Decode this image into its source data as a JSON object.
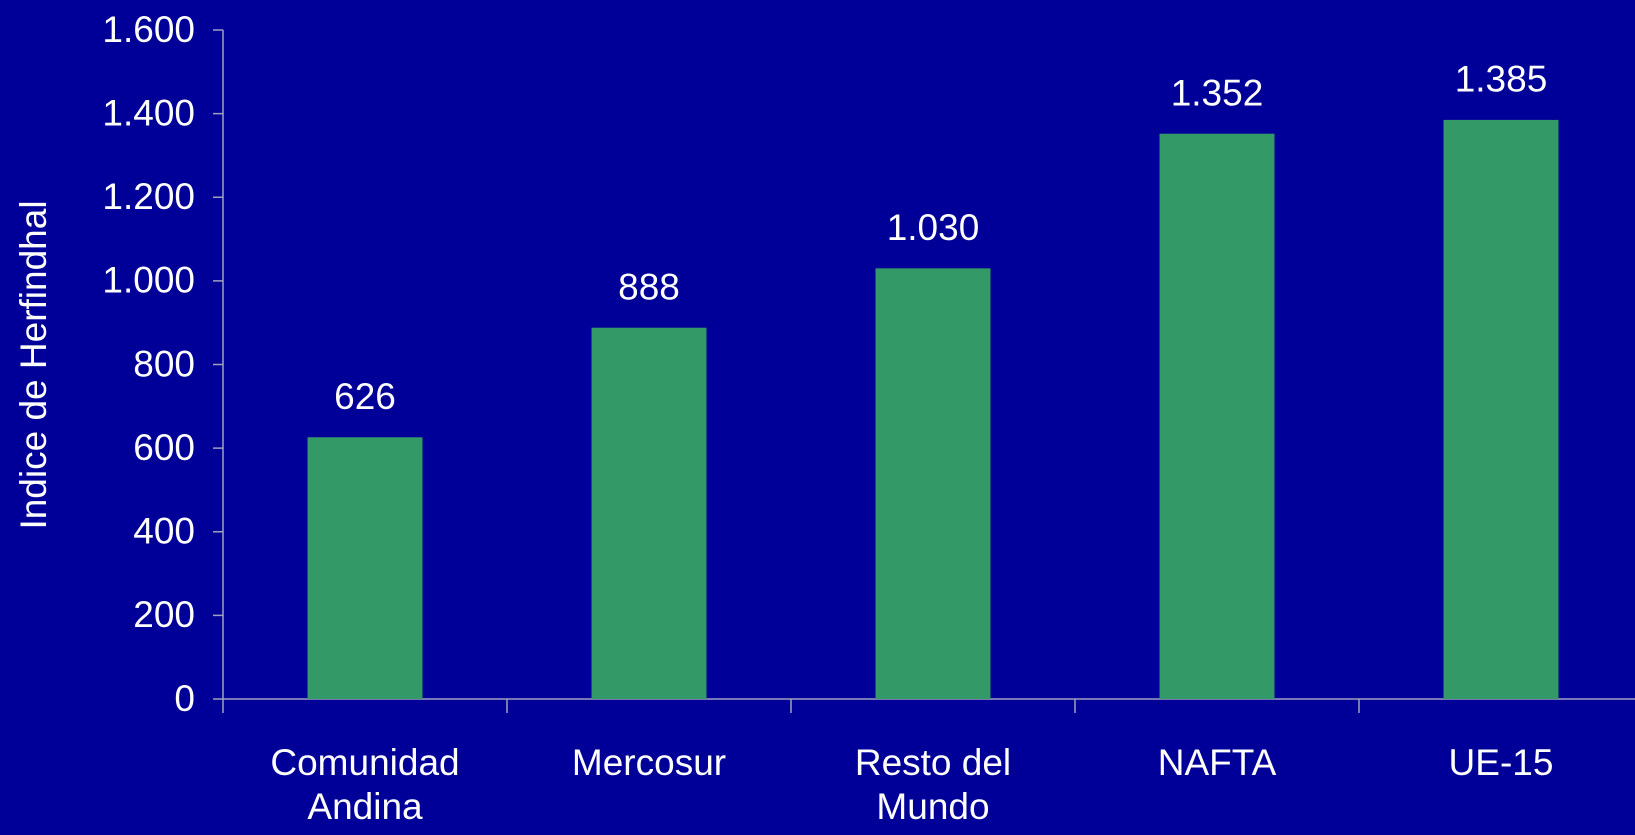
{
  "chart_data": {
    "type": "bar",
    "y_label": "Indice de Herfindhal",
    "categories": [
      "Comunidad Andina",
      "Mercosur",
      "Resto del Mundo",
      "NAFTA",
      "UE-15"
    ],
    "values": [
      626,
      888,
      1030,
      1352,
      1385
    ],
    "value_labels": [
      "626",
      "888",
      "1.030",
      "1.352",
      "1.385"
    ],
    "color": "#339966",
    "ylim": [
      0,
      1600
    ],
    "yticks": [
      {
        "value": 0,
        "label": "0"
      },
      {
        "value": 200,
        "label": "200"
      },
      {
        "value": 400,
        "label": "400"
      },
      {
        "value": 600,
        "label": "600"
      },
      {
        "value": 800,
        "label": "800"
      },
      {
        "value": 1000,
        "label": "1.000"
      },
      {
        "value": 1200,
        "label": "1.200"
      },
      {
        "value": 1400,
        "label": "1.400"
      },
      {
        "value": 1600,
        "label": "1.600"
      }
    ],
    "grid": false
  }
}
